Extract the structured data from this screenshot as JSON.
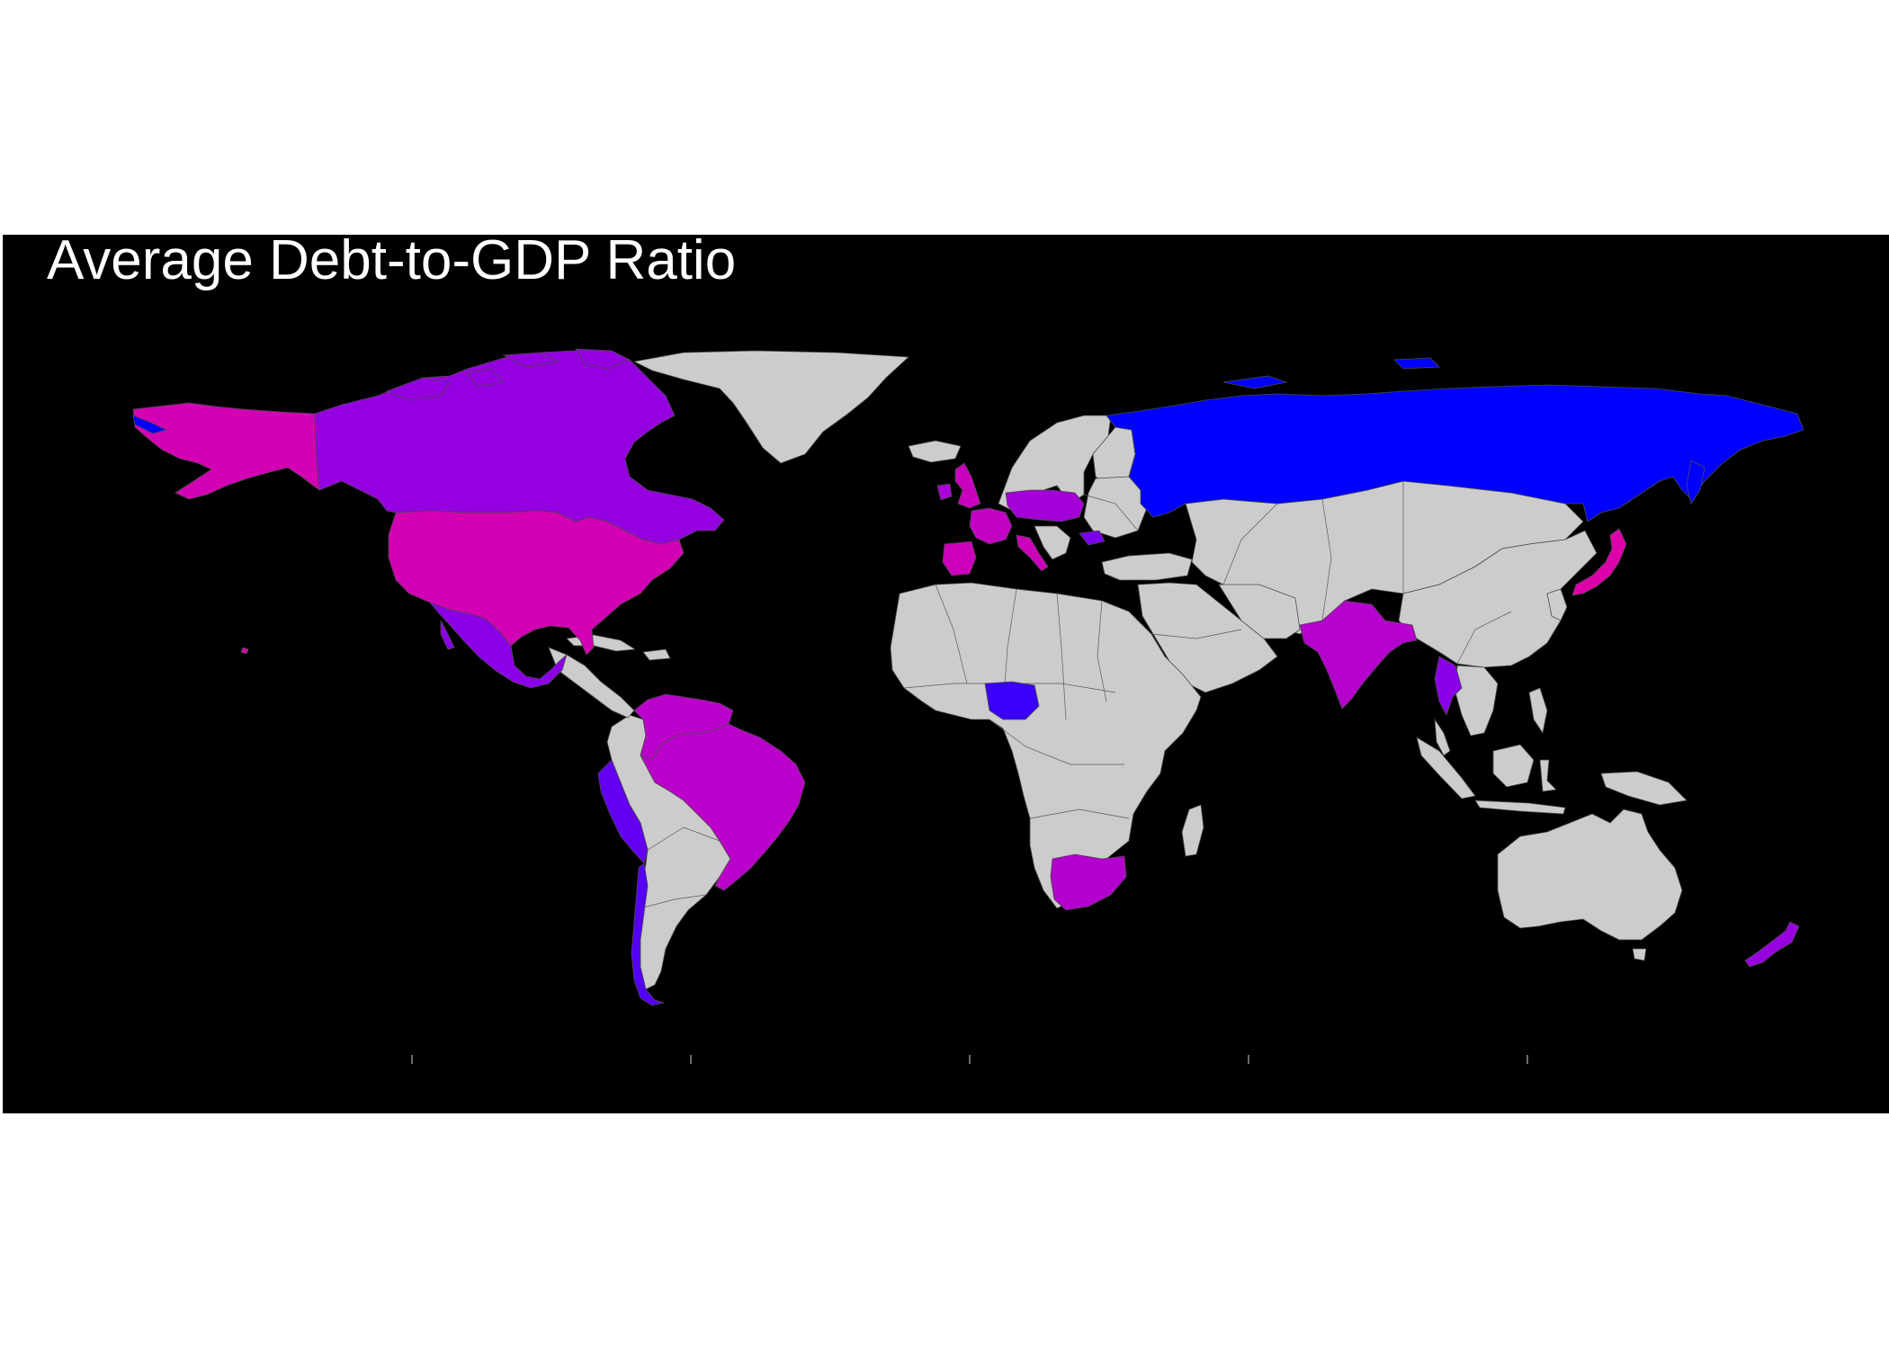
{
  "title": "Average Debt-to-GDP Ratio",
  "colors": {
    "background": "#000000",
    "no_data": "#cccccc",
    "scale_low": "#0000ff",
    "scale_high": "#dd00aa"
  },
  "map_data": {
    "type": "choropleth",
    "variable": "Average Debt-to-GDP Ratio",
    "projection": "equirectangular",
    "highlighted_countries": [
      {
        "name": "United States",
        "color": "#d300b4"
      },
      {
        "name": "Canada",
        "color": "#9500e0"
      },
      {
        "name": "Mexico",
        "color": "#8c00e8"
      },
      {
        "name": "Brazil",
        "color": "#bb00cc"
      },
      {
        "name": "Colombia",
        "color": "#bb00cc"
      },
      {
        "name": "Venezuela",
        "color": "#bb00cc"
      },
      {
        "name": "Peru",
        "color": "#6400f2"
      },
      {
        "name": "Chile",
        "color": "#5400f5"
      },
      {
        "name": "Argentina",
        "color": "#cccccc"
      },
      {
        "name": "United Kingdom",
        "color": "#c800be"
      },
      {
        "name": "Ireland",
        "color": "#a800d6"
      },
      {
        "name": "France",
        "color": "#c200c4"
      },
      {
        "name": "Germany",
        "color": "#a400d8"
      },
      {
        "name": "Poland",
        "color": "#aa00d4"
      },
      {
        "name": "Italy",
        "color": "#cc00bb"
      },
      {
        "name": "Spain",
        "color": "#cc00bb"
      },
      {
        "name": "Bulgaria",
        "color": "#7a00ea"
      },
      {
        "name": "Russia",
        "color": "#0000ff"
      },
      {
        "name": "Japan",
        "color": "#dd00aa"
      },
      {
        "name": "India",
        "color": "#b600ce"
      },
      {
        "name": "Thailand",
        "color": "#8a00e8"
      },
      {
        "name": "Nigeria",
        "color": "#3a00fa"
      },
      {
        "name": "South Africa",
        "color": "#b400ce"
      },
      {
        "name": "New Zealand",
        "color": "#9800e0"
      }
    ]
  }
}
